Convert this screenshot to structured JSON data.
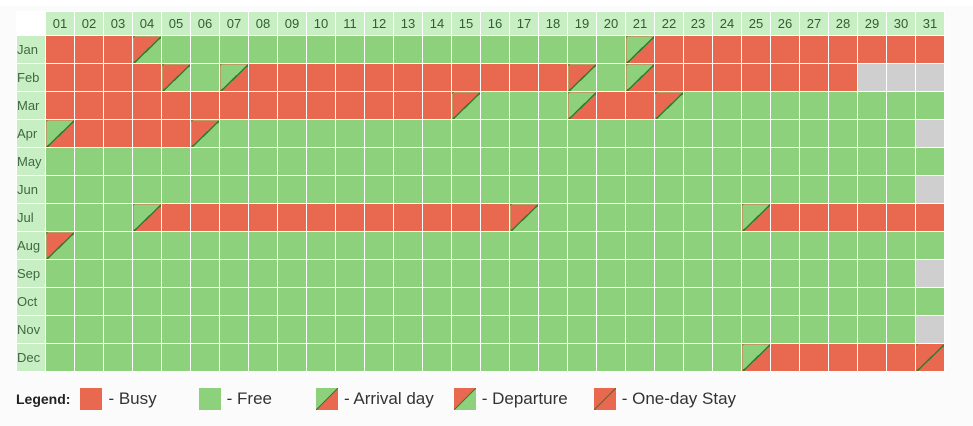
{
  "days": [
    "01",
    "02",
    "03",
    "04",
    "05",
    "06",
    "07",
    "08",
    "09",
    "10",
    "11",
    "12",
    "13",
    "14",
    "15",
    "16",
    "17",
    "18",
    "19",
    "20",
    "21",
    "22",
    "23",
    "24",
    "25",
    "26",
    "27",
    "28",
    "29",
    "30",
    "31"
  ],
  "months": [
    {
      "label": "Jan",
      "cells": [
        "busy",
        "busy",
        "busy",
        "dep",
        "free",
        "free",
        "free",
        "free",
        "free",
        "free",
        "free",
        "free",
        "free",
        "free",
        "free",
        "free",
        "free",
        "free",
        "free",
        "free",
        "arr",
        "busy",
        "busy",
        "busy",
        "busy",
        "busy",
        "busy",
        "busy",
        "busy",
        "busy",
        "busy"
      ]
    },
    {
      "label": "Feb",
      "cells": [
        "busy",
        "busy",
        "busy",
        "busy",
        "dep",
        "free",
        "arr",
        "busy",
        "busy",
        "busy",
        "busy",
        "busy",
        "busy",
        "busy",
        "busy",
        "busy",
        "busy",
        "busy",
        "dep",
        "free",
        "arr",
        "busy",
        "busy",
        "busy",
        "busy",
        "busy",
        "busy",
        "busy",
        "none",
        "none",
        "none"
      ]
    },
    {
      "label": "Mar",
      "cells": [
        "busy",
        "busy",
        "busy",
        "busy",
        "busy",
        "busy",
        "busy",
        "busy",
        "busy",
        "busy",
        "busy",
        "busy",
        "busy",
        "busy",
        "dep",
        "free",
        "free",
        "free",
        "arr",
        "busy",
        "busy",
        "dep",
        "free",
        "free",
        "free",
        "free",
        "free",
        "free",
        "free",
        "free",
        "free"
      ]
    },
    {
      "label": "Apr",
      "cells": [
        "arr",
        "busy",
        "busy",
        "busy",
        "busy",
        "dep",
        "free",
        "free",
        "free",
        "free",
        "free",
        "free",
        "free",
        "free",
        "free",
        "free",
        "free",
        "free",
        "free",
        "free",
        "free",
        "free",
        "free",
        "free",
        "free",
        "free",
        "free",
        "free",
        "free",
        "free",
        "none"
      ]
    },
    {
      "label": "May",
      "cells": [
        "free",
        "free",
        "free",
        "free",
        "free",
        "free",
        "free",
        "free",
        "free",
        "free",
        "free",
        "free",
        "free",
        "free",
        "free",
        "free",
        "free",
        "free",
        "free",
        "free",
        "free",
        "free",
        "free",
        "free",
        "free",
        "free",
        "free",
        "free",
        "free",
        "free",
        "free"
      ]
    },
    {
      "label": "Jun",
      "cells": [
        "free",
        "free",
        "free",
        "free",
        "free",
        "free",
        "free",
        "free",
        "free",
        "free",
        "free",
        "free",
        "free",
        "free",
        "free",
        "free",
        "free",
        "free",
        "free",
        "free",
        "free",
        "free",
        "free",
        "free",
        "free",
        "free",
        "free",
        "free",
        "free",
        "free",
        "none"
      ]
    },
    {
      "label": "Jul",
      "cells": [
        "free",
        "free",
        "free",
        "arr",
        "busy",
        "busy",
        "busy",
        "busy",
        "busy",
        "busy",
        "busy",
        "busy",
        "busy",
        "busy",
        "busy",
        "busy",
        "dep",
        "free",
        "free",
        "free",
        "free",
        "free",
        "free",
        "free",
        "arr",
        "busy",
        "busy",
        "busy",
        "busy",
        "busy",
        "busy"
      ]
    },
    {
      "label": "Aug",
      "cells": [
        "dep",
        "free",
        "free",
        "free",
        "free",
        "free",
        "free",
        "free",
        "free",
        "free",
        "free",
        "free",
        "free",
        "free",
        "free",
        "free",
        "free",
        "free",
        "free",
        "free",
        "free",
        "free",
        "free",
        "free",
        "free",
        "free",
        "free",
        "free",
        "free",
        "free",
        "free"
      ]
    },
    {
      "label": "Sep",
      "cells": [
        "free",
        "free",
        "free",
        "free",
        "free",
        "free",
        "free",
        "free",
        "free",
        "free",
        "free",
        "free",
        "free",
        "free",
        "free",
        "free",
        "free",
        "free",
        "free",
        "free",
        "free",
        "free",
        "free",
        "free",
        "free",
        "free",
        "free",
        "free",
        "free",
        "free",
        "none"
      ]
    },
    {
      "label": "Oct",
      "cells": [
        "free",
        "free",
        "free",
        "free",
        "free",
        "free",
        "free",
        "free",
        "free",
        "free",
        "free",
        "free",
        "free",
        "free",
        "free",
        "free",
        "free",
        "free",
        "free",
        "free",
        "free",
        "free",
        "free",
        "free",
        "free",
        "free",
        "free",
        "free",
        "free",
        "free",
        "free"
      ]
    },
    {
      "label": "Nov",
      "cells": [
        "free",
        "free",
        "free",
        "free",
        "free",
        "free",
        "free",
        "free",
        "free",
        "free",
        "free",
        "free",
        "free",
        "free",
        "free",
        "free",
        "free",
        "free",
        "free",
        "free",
        "free",
        "free",
        "free",
        "free",
        "free",
        "free",
        "free",
        "free",
        "free",
        "free",
        "none"
      ]
    },
    {
      "label": "Dec",
      "cells": [
        "free",
        "free",
        "free",
        "free",
        "free",
        "free",
        "free",
        "free",
        "free",
        "free",
        "free",
        "free",
        "free",
        "free",
        "free",
        "free",
        "free",
        "free",
        "free",
        "free",
        "free",
        "free",
        "free",
        "free",
        "arr",
        "busy",
        "busy",
        "busy",
        "busy",
        "busy",
        "one"
      ]
    }
  ],
  "legend": {
    "title": "Legend:",
    "items": [
      {
        "type": "busy",
        "label": "- Busy"
      },
      {
        "type": "free",
        "label": "- Free"
      },
      {
        "type": "arr",
        "label": "- Arrival day"
      },
      {
        "type": "dep",
        "label": "- Departure"
      },
      {
        "type": "one",
        "label": "- One-day Stay"
      }
    ]
  },
  "colors": {
    "busy": "#e8694f",
    "free": "#8dd17c",
    "unavailable": "#cfcfcf",
    "header": "#c8eec4"
  }
}
